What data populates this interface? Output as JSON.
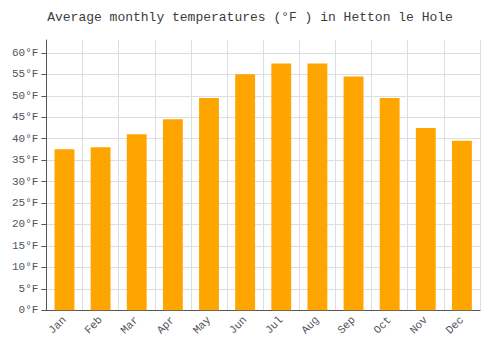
{
  "chart_data": {
    "type": "bar",
    "title": "Average monthly temperatures (°F ) in Hetton le Hole",
    "categories": [
      "Jan",
      "Feb",
      "Mar",
      "Apr",
      "May",
      "Jun",
      "Jul",
      "Aug",
      "Sep",
      "Oct",
      "Nov",
      "Dec"
    ],
    "values": [
      37.5,
      38.0,
      41.0,
      44.5,
      49.5,
      55.0,
      57.5,
      57.5,
      54.5,
      49.5,
      42.5,
      39.5
    ],
    "color": "#FFA500",
    "ylim": [
      0,
      63
    ],
    "yticks": [
      {
        "value": 0,
        "label": "0°F"
      },
      {
        "value": 5,
        "label": "5°F"
      },
      {
        "value": 10,
        "label": "10°F"
      },
      {
        "value": 15,
        "label": "15°F"
      },
      {
        "value": 20,
        "label": "20°F"
      },
      {
        "value": 25,
        "label": "25°F"
      },
      {
        "value": 30,
        "label": "30°F"
      },
      {
        "value": 35,
        "label": "35°F"
      },
      {
        "value": 40,
        "label": "40°F"
      },
      {
        "value": 45,
        "label": "45°F"
      },
      {
        "value": 50,
        "label": "50°F"
      },
      {
        "value": 55,
        "label": "55°F"
      },
      {
        "value": 60,
        "label": "60°F"
      }
    ],
    "grid": true
  }
}
